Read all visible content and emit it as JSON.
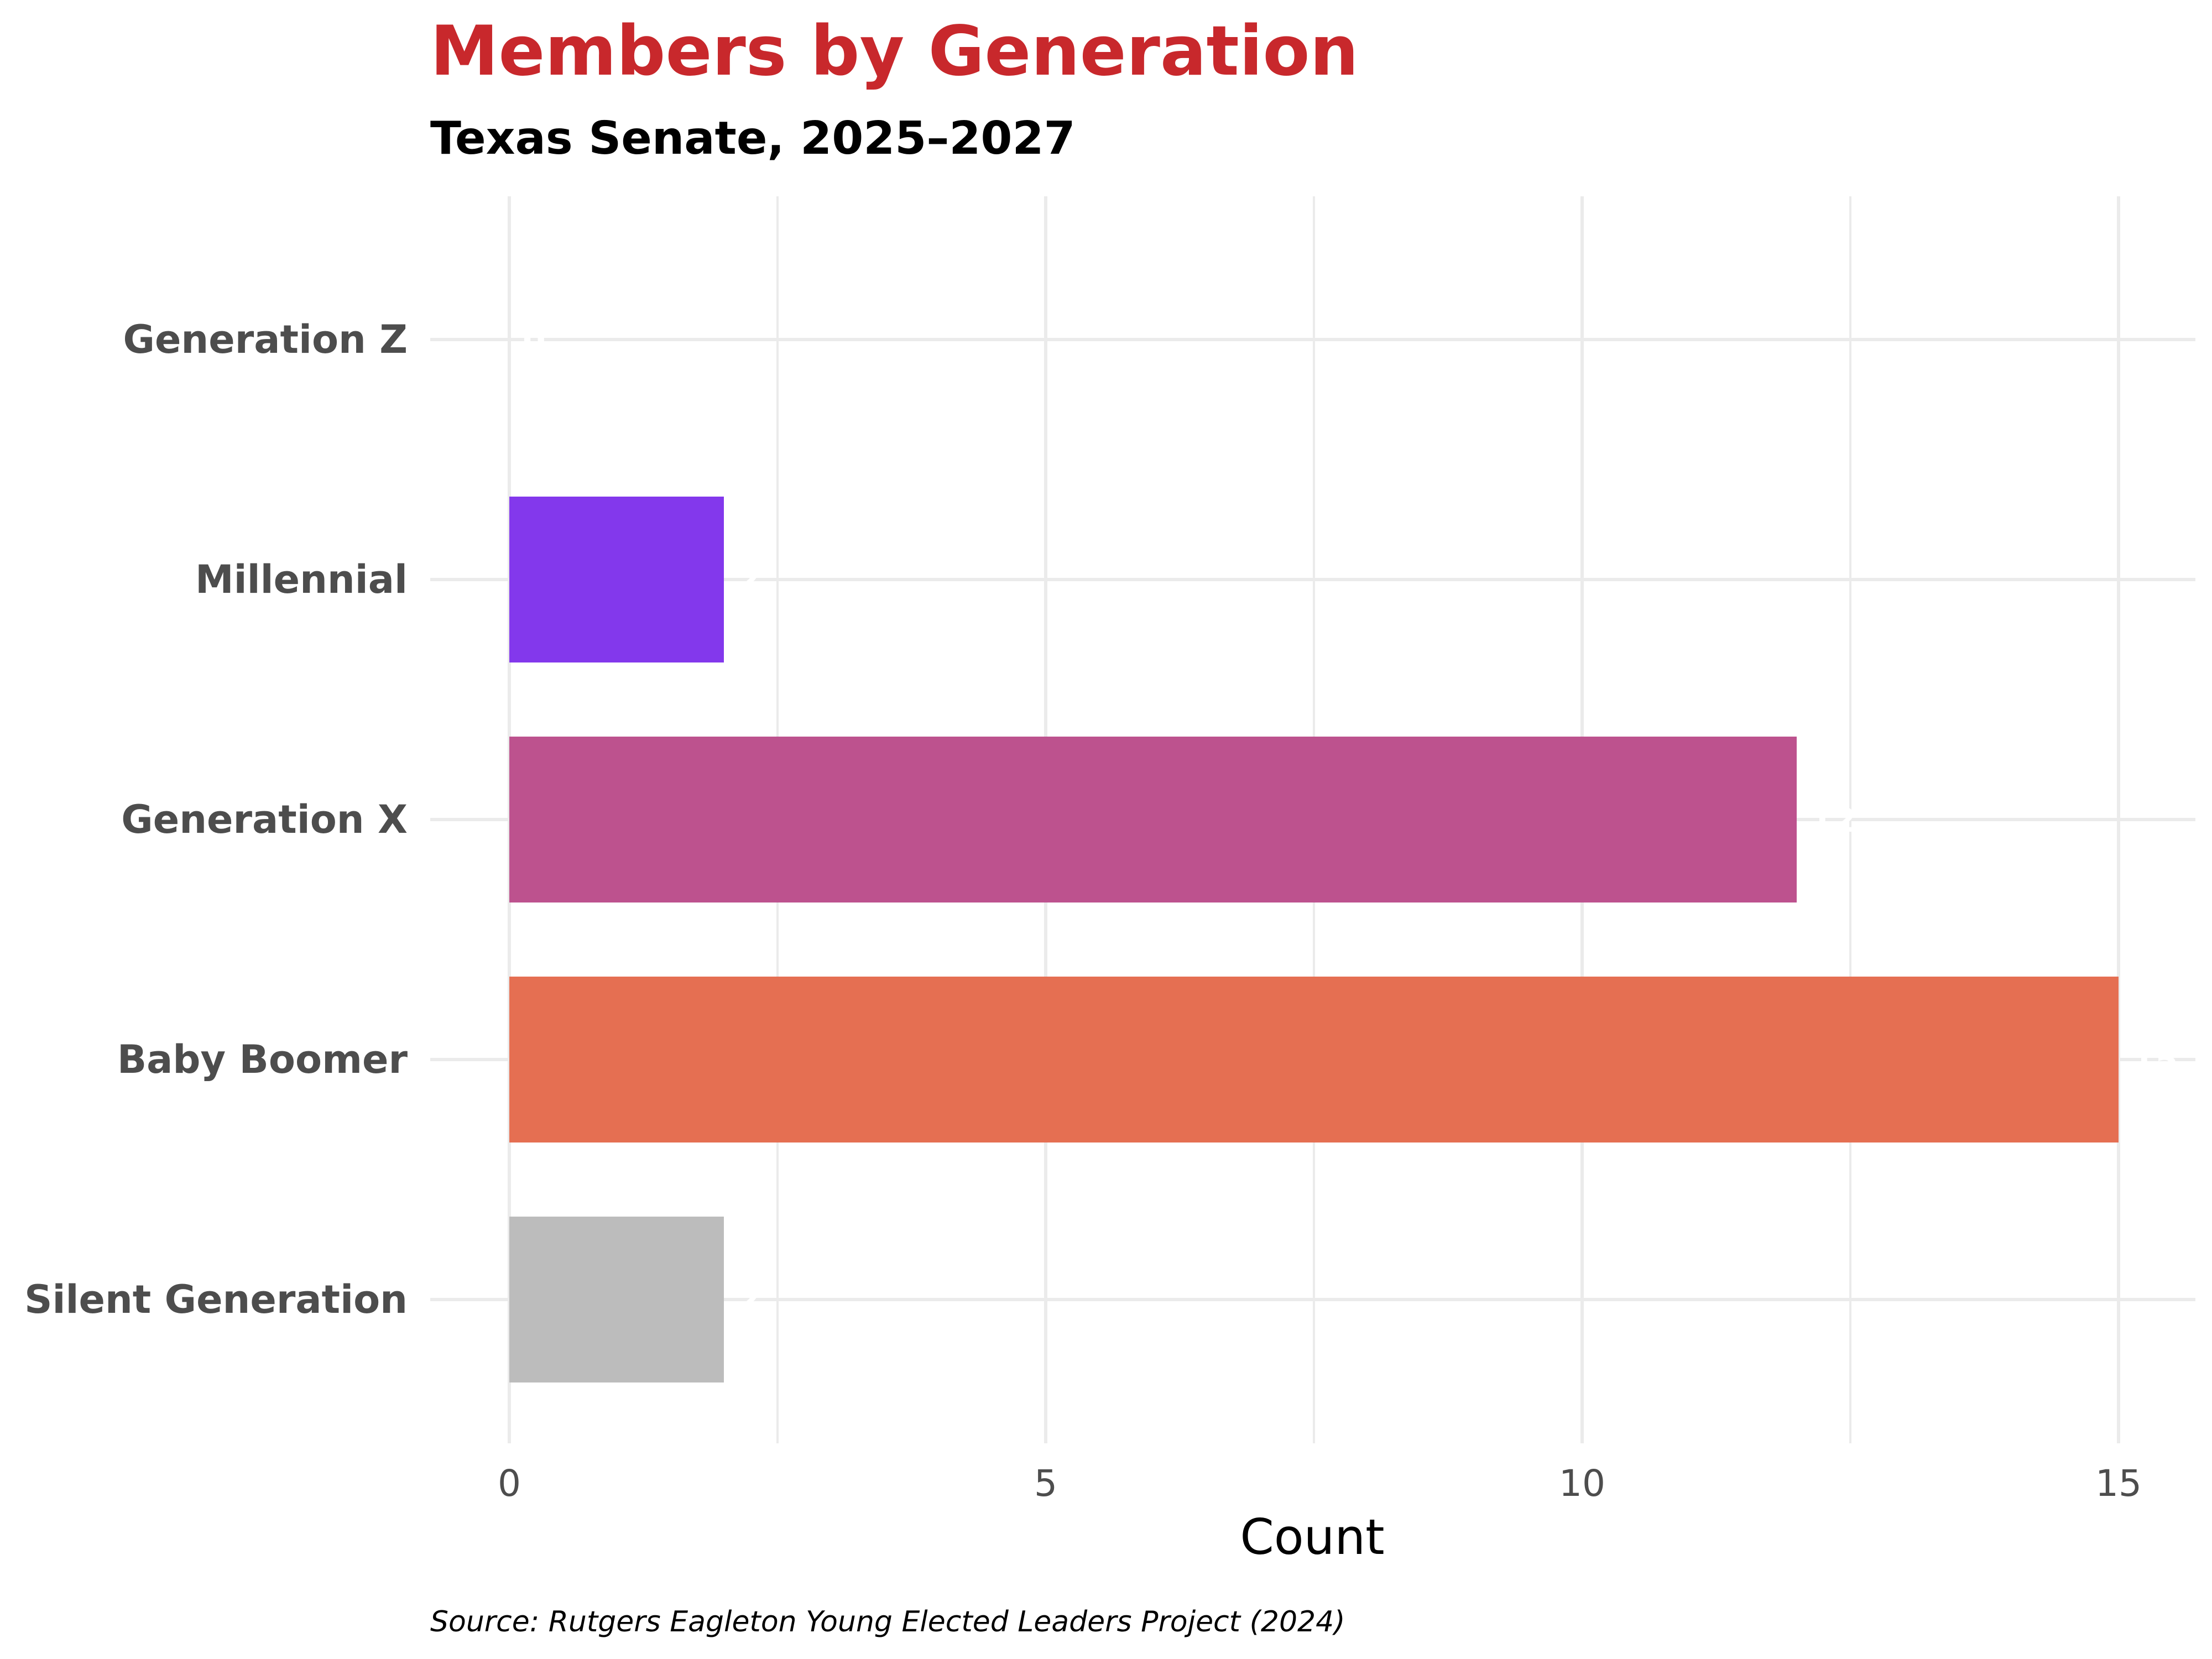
{
  "chart_data": {
    "type": "bar",
    "orientation": "horizontal",
    "title": "Members by Generation",
    "subtitle": "Texas Senate, 2025–2027",
    "xlabel": "Count",
    "ylabel": "",
    "caption": "Source: Rutgers Eagleton Young Elected Leaders Project (2024)",
    "categories": [
      "Generation Z",
      "Millennial",
      "Generation X",
      "Baby Boomer",
      "Silent Generation"
    ],
    "values": [
      0,
      2,
      12,
      15,
      2
    ],
    "value_labels": [
      "0",
      "2",
      "12",
      "15",
      "2"
    ],
    "colors": [
      "#5a1fa0",
      "#8338ec",
      "#bd528e",
      "#e56f52",
      "#bcbcbc"
    ],
    "xlim": [
      -1.5,
      15.5
    ],
    "x_ticks": [
      0,
      5,
      10,
      15
    ],
    "x_tick_labels": [
      "0",
      "5",
      "10",
      "15"
    ],
    "grid": true,
    "legend": "none",
    "title_color": "#c8282c"
  }
}
